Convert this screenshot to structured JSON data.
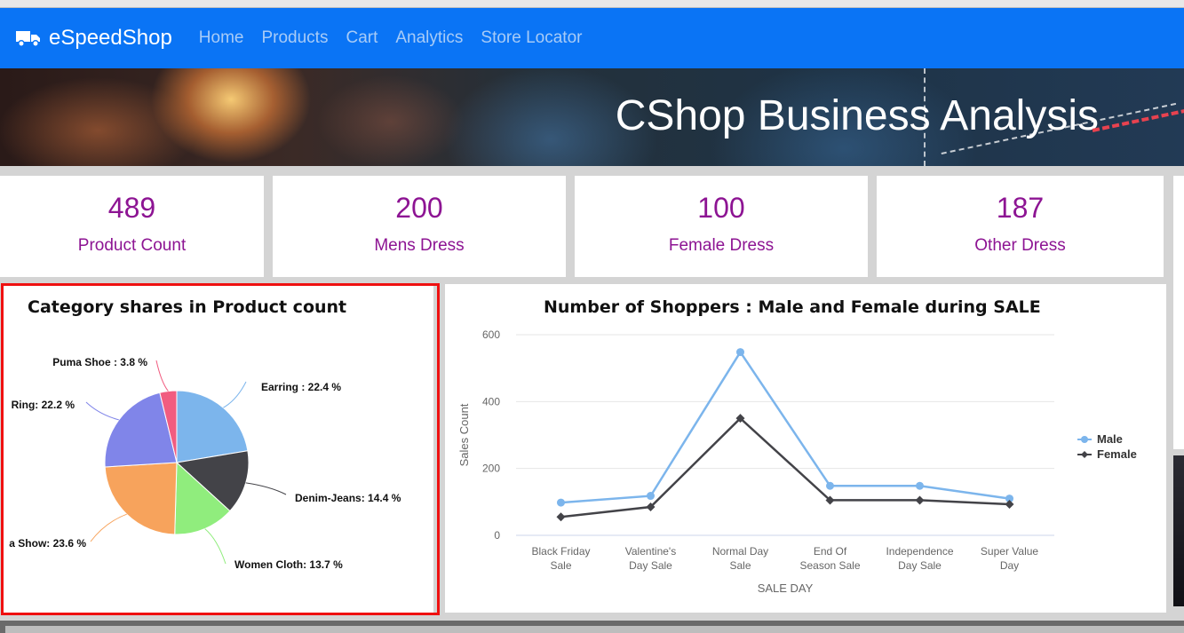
{
  "navbar": {
    "brand": "eSpeedShop",
    "links": [
      "Home",
      "Products",
      "Cart",
      "Analytics",
      "Store Locator"
    ]
  },
  "banner": {
    "title": "CShop Business Analysis"
  },
  "stats": [
    {
      "value": "489",
      "label": "Product Count"
    },
    {
      "value": "200",
      "label": "Mens Dress"
    },
    {
      "value": "100",
      "label": "Female Dress"
    },
    {
      "value": "187",
      "label": "Other Dress"
    }
  ],
  "colors": {
    "navbar": "#0a74f5",
    "accent": "#8d1493",
    "highlight": "#ef1010"
  },
  "chart_data": [
    {
      "type": "pie",
      "title": "Category shares in Product count",
      "slices": [
        {
          "label": "Earring : 22.4 %",
          "value": 22.4,
          "color": "#7cb5ec"
        },
        {
          "label": "Denim-Jeans: 14.4 %",
          "value": 14.4,
          "color": "#434348"
        },
        {
          "label": "Women Cloth: 13.7 %",
          "value": 13.7,
          "color": "#90ed7d"
        },
        {
          "label": "a Show: 23.6 %",
          "value": 23.6,
          "color": "#f7a35c"
        },
        {
          "label": "Ring: 22.2 %",
          "value": 22.2,
          "color": "#8085e9"
        },
        {
          "label": "Puma Shoe : 3.8 %",
          "value": 3.8,
          "color": "#f15c80"
        }
      ]
    },
    {
      "type": "line",
      "title": "Number of Shoppers : Male and Female during SALE",
      "xlabel": "SALE DAY",
      "ylabel": "Sales Count",
      "categories": [
        [
          "Black Friday",
          "Sale"
        ],
        [
          "Valentine's",
          "Day Sale"
        ],
        [
          "Normal Day",
          "Sale"
        ],
        [
          "End Of",
          "Season Sale"
        ],
        [
          "Independence",
          "Day Sale"
        ],
        [
          "Super Value",
          "Day"
        ]
      ],
      "yticks": [
        0,
        200,
        400,
        600
      ],
      "ylim": [
        0,
        600
      ],
      "grid": true,
      "legend_position": "right",
      "series": [
        {
          "name": "Male",
          "color": "#7cb5ec",
          "marker": "circle",
          "values": [
            98,
            118,
            548,
            148,
            148,
            110
          ]
        },
        {
          "name": "Female",
          "color": "#434348",
          "marker": "diamond",
          "values": [
            55,
            85,
            350,
            105,
            105,
            93
          ]
        }
      ]
    }
  ]
}
